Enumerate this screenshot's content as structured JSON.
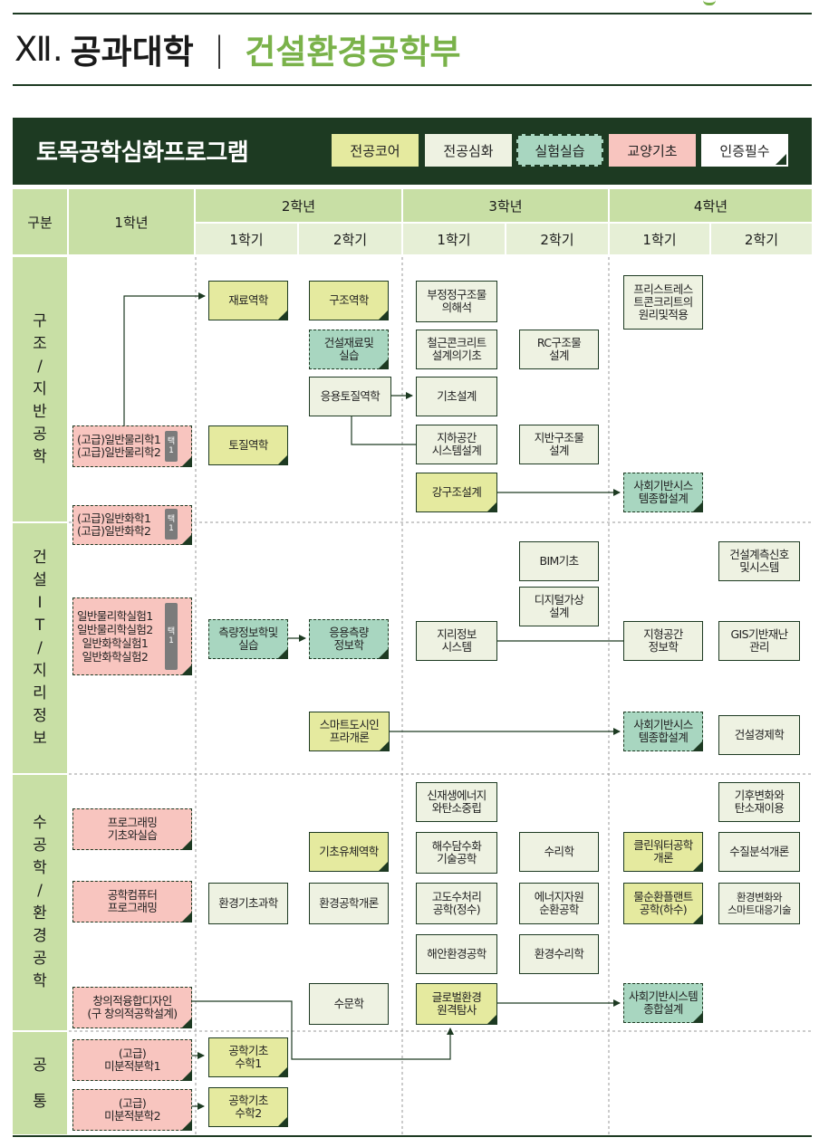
{
  "page": {
    "roman": "Ⅻ.",
    "college": "공과대학",
    "divider": "|",
    "dept": "건설환경공학부"
  },
  "program": {
    "title": "토목공학심화프로그램",
    "legend": [
      {
        "label": "전공코어",
        "type": "core"
      },
      {
        "label": "전공심화",
        "type": "deep"
      },
      {
        "label": "실험실습",
        "type": "lab"
      },
      {
        "label": "교양기초",
        "type": "liberal"
      },
      {
        "label": "인증필수",
        "type": "required"
      }
    ]
  },
  "colors": {
    "dark_green": "#1d3a22",
    "header_green": "#c8dfa5",
    "core": "#e5ea9f",
    "deep": "#eef2e2",
    "lab": "#a8d6c0",
    "liberal": "#f8c5bf",
    "dept_title": "#7ab24a"
  },
  "headers": {
    "category": "구분",
    "year1": "1학년",
    "year2": "2학년",
    "year3": "3학년",
    "year4": "4학년",
    "sem1": "1학기",
    "sem2": "2학기"
  },
  "sections": {
    "s1": [
      "구",
      "조",
      "/",
      "지",
      "반",
      "공",
      "학"
    ],
    "s2": [
      "건",
      "설",
      "I",
      "T",
      "/",
      "지",
      "리",
      "정",
      "보"
    ],
    "s3": [
      "수",
      "공",
      "학",
      "/",
      "환",
      "경",
      "공",
      "학"
    ],
    "s4": [
      "공",
      "통"
    ]
  },
  "tags": {
    "t1": [
      "택",
      "1"
    ],
    "t2": [
      "택",
      "1"
    ],
    "t3": [
      "택",
      "1"
    ]
  },
  "courses": {
    "physics": "(고급)일반물리학1\n(고급)일반물리학2",
    "chem": "(고급)일반화학1\n(고급)일반화학2",
    "labs": "일반물리학실험1\n일반물리학실험2\n일반화학실험1\n일반화학실험2",
    "prog": "프로그래밍\n기초와실습",
    "comp": "공학컴퓨터\n프로그래밍",
    "design": "창의적융합디자인\n(구 창의적공학설계)",
    "calc1": "(고급)\n미분적분학1",
    "calc2": "(고급)\n미분적분학2",
    "mat_mech": "재료역학",
    "soil_mech": "토질역학",
    "survey": "측량정보학및\n실습",
    "env_basic": "환경기초과학",
    "eng_math1": "공학기초\n수학1",
    "eng_math2": "공학기초\n수학2",
    "struct_mech": "구조역학",
    "const_mat": "건설재료및\n실습",
    "app_soil": "응용토질역학",
    "app_survey": "응용측량\n정보학",
    "smart_city": "스마트도시인\n프라개론",
    "basic_fluid": "기초유체역학",
    "env_intro": "환경공학개론",
    "hydrology": "수문학",
    "indet": "부정정구조물\n의해석",
    "rc_basic": "철근콘크리트\n설계의기초",
    "foundation": "기초설계",
    "underground": "지하공간\n시스템설계",
    "steel": "강구조설계",
    "gis": "지리정보\n시스템",
    "renew": "신재생에너지\n와탄소중립",
    "desal": "해수담수화\n기술공학",
    "adv_water": "고도수처리\n공학(정수)",
    "coastal": "해안환경공학",
    "remote": "글로벌환경\n원격탐사",
    "rc_struct": "RC구조물\n설계",
    "ground_struct": "지반구조물\n설계",
    "bim": "BIM기초",
    "digital_twin": "디지털가상\n설계",
    "hydraulics": "수리학",
    "energy_res": "에너지자원\n순환공학",
    "env_hydraulics": "환경수리학",
    "prestress": "프리스트레스\n트콘크리트의\n원리및적용",
    "capstone1": "사회기반시스\n템종합설계",
    "topo": "지형공간\n정보학",
    "capstone2": "사회기반시스\n템종합설계",
    "clean_water": "클린워터공학\n개론",
    "water_cycle": "물순환플랜트\n공학(하수)",
    "capstone3": "사회기반시스템\n종합설계",
    "const_meas": "건설계측신호\n및시스템",
    "gis_disaster": "GIS기반재난\n관리",
    "const_econ": "건설경제학",
    "climate": "기후변화와\n탄소재이용",
    "water_quality": "수질분석개론",
    "env_change": "환경변화와\n스마트대응기술"
  }
}
